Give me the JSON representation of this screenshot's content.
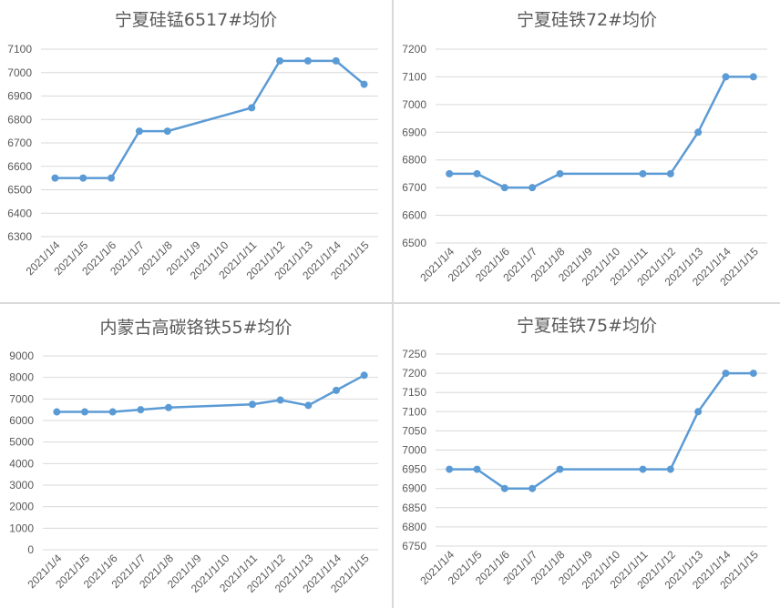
{
  "colors": {
    "line": "#5b9bd5",
    "grid": "#d9d9d9",
    "text": "#595959"
  },
  "chart_data": [
    {
      "type": "line",
      "title": "宁夏硅锰6517#均价",
      "categories": [
        "2021/1/4",
        "2021/1/5",
        "2021/1/6",
        "2021/1/7",
        "2021/1/8",
        "2021/1/9",
        "2021/1/10",
        "2021/1/11",
        "2021/1/12",
        "2021/1/13",
        "2021/1/14",
        "2021/1/15"
      ],
      "series": [
        {
          "values": [
            6550,
            6550,
            6550,
            6750,
            6750,
            null,
            null,
            6850,
            7050,
            7050,
            7050,
            6950
          ]
        }
      ],
      "ylim": [
        6300,
        7100
      ],
      "yticks": [
        6300,
        6400,
        6500,
        6600,
        6700,
        6800,
        6900,
        7000,
        7100
      ],
      "grid": true,
      "legend": "none"
    },
    {
      "type": "line",
      "title": "宁夏硅铁72#均价",
      "categories": [
        "2021/1/4",
        "2021/1/5",
        "2021/1/6",
        "2021/1/7",
        "2021/1/8",
        "2021/1/9",
        "2021/1/10",
        "2021/1/11",
        "2021/1/12",
        "2021/1/13",
        "2021/1/14",
        "2021/1/15"
      ],
      "series": [
        {
          "values": [
            6750,
            6750,
            6700,
            6700,
            6750,
            null,
            null,
            6750,
            6750,
            6900,
            7100,
            7100
          ]
        }
      ],
      "ylim": [
        6500,
        7200
      ],
      "yticks": [
        6500,
        6600,
        6700,
        6800,
        6900,
        7000,
        7100,
        7200
      ],
      "grid": true,
      "legend": "none"
    },
    {
      "type": "line",
      "title": "内蒙古高碳铬铁55#均价",
      "categories": [
        "2021/1/4",
        "2021/1/5",
        "2021/1/6",
        "2021/1/7",
        "2021/1/8",
        "2021/1/9",
        "2021/1/10",
        "2021/1/11",
        "2021/1/12",
        "2021/1/13",
        "2021/1/14",
        "2021/1/15"
      ],
      "series": [
        {
          "values": [
            6400,
            6400,
            6400,
            6500,
            6600,
            null,
            null,
            6750,
            6950,
            6700,
            7400,
            8100
          ]
        }
      ],
      "ylim": [
        0,
        9000
      ],
      "yticks": [
        0,
        1000,
        2000,
        3000,
        4000,
        5000,
        6000,
        7000,
        8000,
        9000
      ],
      "grid": true,
      "legend": "none"
    },
    {
      "type": "line",
      "title": "宁夏硅铁75#均价",
      "categories": [
        "2021/1/4",
        "2021/1/5",
        "2021/1/6",
        "2021/1/7",
        "2021/1/8",
        "2021/1/9",
        "2021/1/10",
        "2021/1/11",
        "2021/1/12",
        "2021/1/13",
        "2021/1/14",
        "2021/1/15"
      ],
      "series": [
        {
          "values": [
            6950,
            6950,
            6900,
            6900,
            6950,
            null,
            null,
            6950,
            6950,
            7100,
            7200,
            7200
          ]
        }
      ],
      "ylim": [
        6750,
        7250
      ],
      "yticks": [
        6750,
        6800,
        6850,
        6900,
        6950,
        7000,
        7050,
        7100,
        7150,
        7200,
        7250
      ],
      "grid": true,
      "legend": "none"
    }
  ]
}
